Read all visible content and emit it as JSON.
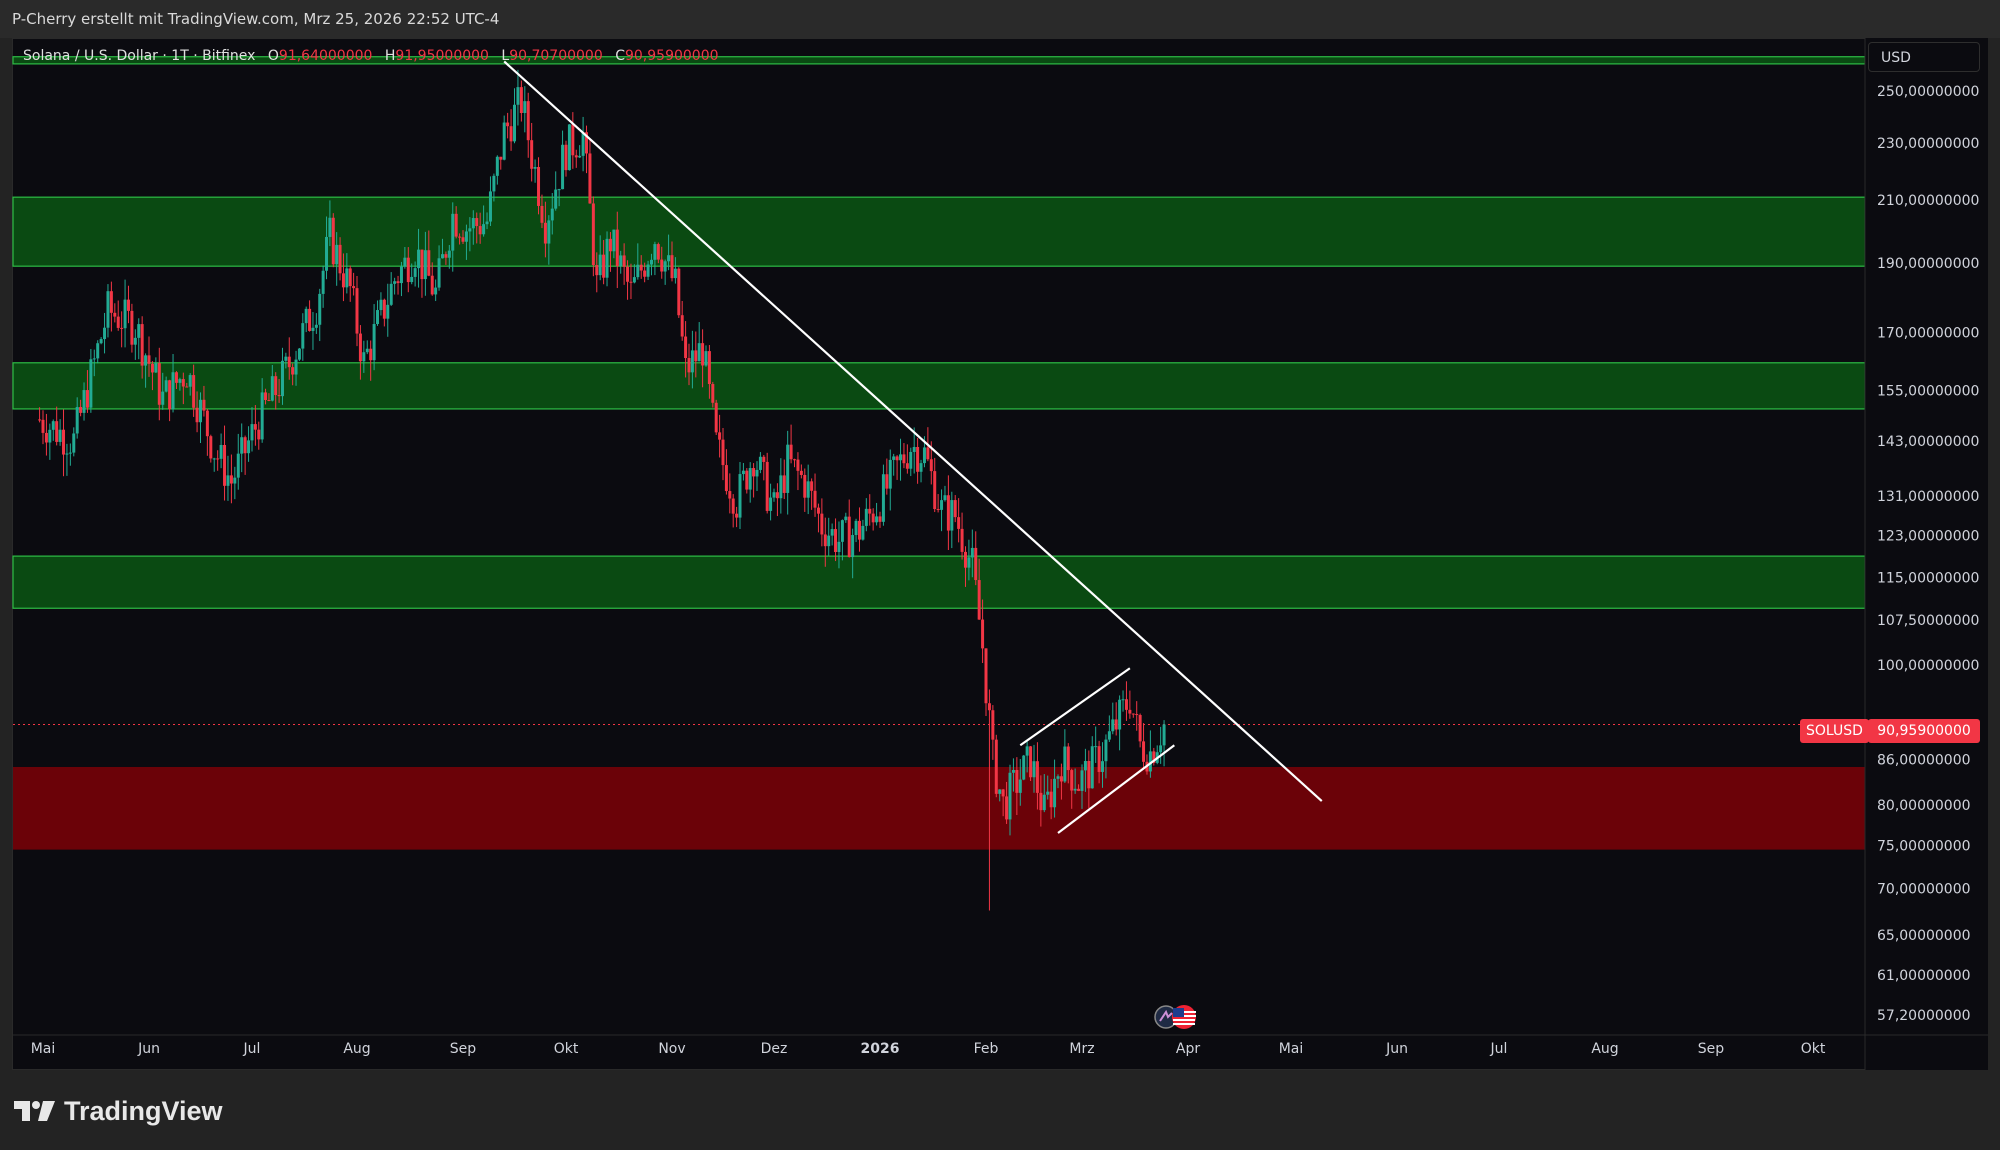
{
  "header": {
    "attribution": "P-Cherry erstellt mit TradingView.com, Mrz 25, 2026 22:52 UTC-4"
  },
  "legend": {
    "symbol": "Solana / U.S. Dollar · 1T · Bitfinex",
    "open_label": "O",
    "open": "91,64000000",
    "high_label": "H",
    "high": "91,95000000",
    "low_label": "L",
    "low": "90,70700000",
    "close_label": "C",
    "close": "90,95900000"
  },
  "currency": "USD",
  "price_label": {
    "symbol": "SOLUSD",
    "value": "90,95900000"
  },
  "colors": {
    "up": "#22ab94",
    "down": "#f23645",
    "support_zone": "#0a4a12",
    "demand_zone": "#6b0208",
    "zone_border": "#2dbd45",
    "trendline": "#ffffff",
    "background": "#0b0b10"
  },
  "icons": {
    "logo": "tradingview-logo-icon",
    "event": "us-flag-icon"
  },
  "brand": "TradingView",
  "chart_data": {
    "type": "candlestick",
    "title": "",
    "xlabel": "",
    "ylabel": "",
    "y_scale": "log",
    "ylim": [
      55.6,
      266
    ],
    "x_ticks": [
      "Mai",
      "Jun",
      "Jul",
      "Aug",
      "Sep",
      "Okt",
      "Nov",
      "Dez",
      "2026",
      "Feb",
      "Mrz",
      "Apr",
      "Mai",
      "Jun",
      "Jul",
      "Aug",
      "Sep",
      "Okt"
    ],
    "x_ticks_bold": [
      "2026"
    ],
    "y_ticks": [
      {
        "value": 250,
        "label": "250,00000000"
      },
      {
        "value": 230,
        "label": "230,00000000"
      },
      {
        "value": 210,
        "label": "210,00000000"
      },
      {
        "value": 190,
        "label": "190,00000000"
      },
      {
        "value": 170,
        "label": "170,00000000"
      },
      {
        "value": 155,
        "label": "155,00000000"
      },
      {
        "value": 143,
        "label": "143,00000000"
      },
      {
        "value": 131,
        "label": "131,00000000"
      },
      {
        "value": 123,
        "label": "123,00000000"
      },
      {
        "value": 115,
        "label": "115,00000000"
      },
      {
        "value": 107.5,
        "label": "107,50000000"
      },
      {
        "value": 100,
        "label": "100,00000000"
      },
      {
        "value": 86,
        "label": "86,00000000"
      },
      {
        "value": 80,
        "label": "80,00000000"
      },
      {
        "value": 75,
        "label": "75,00000000"
      },
      {
        "value": 70,
        "label": "70,00000000"
      },
      {
        "value": 65,
        "label": "65,00000000"
      },
      {
        "value": 61,
        "label": "61,00000000"
      },
      {
        "value": 57.2,
        "label": "57,20000000"
      }
    ],
    "last_price": 90.959,
    "zones": [
      {
        "name": "resistance-top-band",
        "from": 261,
        "to": 264,
        "color": "support"
      },
      {
        "name": "supply-zone-190-210",
        "from": 189,
        "to": 211,
        "color": "support"
      },
      {
        "name": "zone-150-162",
        "from": 150.5,
        "to": 162,
        "color": "support"
      },
      {
        "name": "zone-110-119",
        "from": 109.5,
        "to": 119,
        "color": "support"
      },
      {
        "name": "demand-zone-75-85",
        "from": 74.5,
        "to": 85,
        "color": "demand"
      }
    ],
    "lines": [
      {
        "name": "downtrend-line",
        "from": {
          "x": "Sep 13",
          "y": 262
        },
        "to": {
          "x": "Mai 10",
          "y": 80.5
        }
      },
      {
        "name": "channel-upper",
        "from": {
          "x": "Feb 11",
          "y": 88
        },
        "to": {
          "x": "Mrz 15",
          "y": 99.5
        }
      },
      {
        "name": "channel-lower",
        "from": {
          "x": "Feb 22",
          "y": 76.5
        },
        "to": {
          "x": "Mrz 28",
          "y": 88
        }
      }
    ],
    "price_path": [
      {
        "date": "Apr 30",
        "close": 148
      },
      {
        "date": "Mai 10",
        "close": 143
      },
      {
        "date": "Mai 20",
        "close": 176
      },
      {
        "date": "Mai 28",
        "close": 172
      },
      {
        "date": "Jun 5",
        "close": 153
      },
      {
        "date": "Jun 12",
        "close": 160
      },
      {
        "date": "Jun 20",
        "close": 141
      },
      {
        "date": "Jun 25",
        "close": 134
      },
      {
        "date": "Jul 3",
        "close": 148
      },
      {
        "date": "Jul 10",
        "close": 158
      },
      {
        "date": "Jul 20",
        "close": 178
      },
      {
        "date": "Jul 24",
        "close": 198
      },
      {
        "date": "Jul 30",
        "close": 182
      },
      {
        "date": "Aug 3",
        "close": 162
      },
      {
        "date": "Aug 12",
        "close": 185
      },
      {
        "date": "Aug 18",
        "close": 194
      },
      {
        "date": "Aug 24",
        "close": 181
      },
      {
        "date": "Aug 29",
        "close": 205
      },
      {
        "date": "Sep 2",
        "close": 201
      },
      {
        "date": "Sep 8",
        "close": 203
      },
      {
        "date": "Sep 13",
        "close": 234
      },
      {
        "date": "Sep 18",
        "close": 246
      },
      {
        "date": "Sep 21",
        "close": 226
      },
      {
        "date": "Sep 25",
        "close": 203
      },
      {
        "date": "Okt 1",
        "close": 228
      },
      {
        "date": "Okt 6",
        "close": 233
      },
      {
        "date": "Okt 10",
        "close": 183
      },
      {
        "date": "Okt 14",
        "close": 197
      },
      {
        "date": "Okt 20",
        "close": 181
      },
      {
        "date": "Okt 27",
        "close": 198
      },
      {
        "date": "Nov 2",
        "close": 183
      },
      {
        "date": "Nov 5",
        "close": 160
      },
      {
        "date": "Nov 10",
        "close": 166
      },
      {
        "date": "Nov 14",
        "close": 142
      },
      {
        "date": "Nov 20",
        "close": 130
      },
      {
        "date": "Nov 25",
        "close": 140
      },
      {
        "date": "Dez 1",
        "close": 128
      },
      {
        "date": "Dez 5",
        "close": 138
      },
      {
        "date": "Dez 10",
        "close": 134
      },
      {
        "date": "Dez 15",
        "close": 125
      },
      {
        "date": "Dez 20",
        "close": 122
      },
      {
        "date": "Dez 26",
        "close": 124
      },
      {
        "date": "Jan 1",
        "close": 130
      },
      {
        "date": "Jan 6",
        "close": 137
      },
      {
        "date": "Jan 10",
        "close": 142
      },
      {
        "date": "Jan 14",
        "close": 140
      },
      {
        "date": "Jan 19",
        "close": 128
      },
      {
        "date": "Jan 23",
        "close": 127
      },
      {
        "date": "Jan 28",
        "close": 117
      },
      {
        "date": "Jan 31",
        "close": 103
      },
      {
        "date": "Feb 3",
        "close": 86
      },
      {
        "date": "Feb 6",
        "close": 80
      },
      {
        "date": "Feb 10",
        "close": 83
      },
      {
        "date": "Feb 14",
        "close": 86
      },
      {
        "date": "Feb 18",
        "close": 79
      },
      {
        "date": "Feb 23",
        "close": 86
      },
      {
        "date": "Feb 28",
        "close": 83
      },
      {
        "date": "Mrz 4",
        "close": 85
      },
      {
        "date": "Mrz 8",
        "close": 88
      },
      {
        "date": "Mrz 12",
        "close": 92
      },
      {
        "date": "Mrz 15",
        "close": 95
      },
      {
        "date": "Mrz 18",
        "close": 88
      },
      {
        "date": "Mrz 21",
        "close": 87
      },
      {
        "date": "Mrz 25",
        "close": 90.96
      }
    ]
  }
}
